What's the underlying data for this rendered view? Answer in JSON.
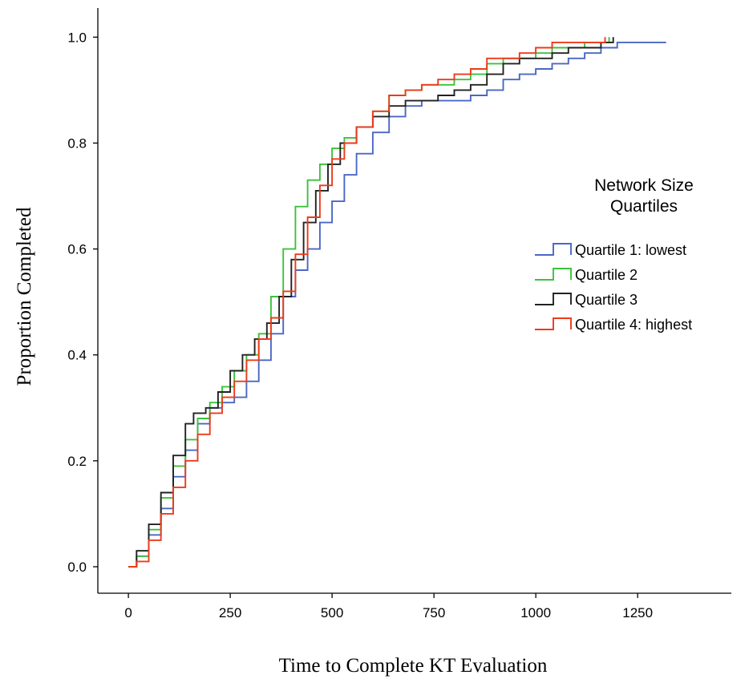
{
  "chart_data": {
    "type": "line",
    "step": true,
    "xlabel": "Time to Complete KT Evaluation",
    "ylabel": "Proportion Completed",
    "xlim": [
      -75,
      1480
    ],
    "ylim": [
      -0.05,
      1.055
    ],
    "xticks": [
      0,
      250,
      500,
      750,
      1000,
      1250
    ],
    "xtick_labels": [
      "0",
      "250",
      "500",
      "750",
      "1000",
      "1250"
    ],
    "yticks": [
      0.0,
      0.2,
      0.4,
      0.6,
      0.8,
      1.0
    ],
    "ytick_labels": [
      "0.0",
      "0.2",
      "0.4",
      "0.6",
      "0.8",
      "1.0"
    ],
    "grid": false,
    "legend": {
      "title": [
        "Network Size",
        "Quartiles"
      ],
      "position": "right"
    },
    "series": [
      {
        "name": "Quartile 1: lowest",
        "color": "#4a67c4",
        "points": [
          [
            0,
            0
          ],
          [
            20,
            0.02
          ],
          [
            50,
            0.06
          ],
          [
            80,
            0.11
          ],
          [
            110,
            0.17
          ],
          [
            140,
            0.22
          ],
          [
            170,
            0.27
          ],
          [
            200,
            0.3
          ],
          [
            230,
            0.31
          ],
          [
            260,
            0.32
          ],
          [
            290,
            0.35
          ],
          [
            320,
            0.39
          ],
          [
            350,
            0.44
          ],
          [
            380,
            0.51
          ],
          [
            410,
            0.56
          ],
          [
            440,
            0.6
          ],
          [
            470,
            0.65
          ],
          [
            500,
            0.69
          ],
          [
            530,
            0.74
          ],
          [
            560,
            0.78
          ],
          [
            600,
            0.82
          ],
          [
            640,
            0.85
          ],
          [
            680,
            0.87
          ],
          [
            720,
            0.88
          ],
          [
            760,
            0.88
          ],
          [
            800,
            0.88
          ],
          [
            840,
            0.89
          ],
          [
            880,
            0.9
          ],
          [
            920,
            0.92
          ],
          [
            960,
            0.93
          ],
          [
            1000,
            0.94
          ],
          [
            1040,
            0.95
          ],
          [
            1080,
            0.96
          ],
          [
            1120,
            0.97
          ],
          [
            1160,
            0.98
          ],
          [
            1200,
            0.99
          ],
          [
            1320,
            0.99
          ]
        ]
      },
      {
        "name": "Quartile 2",
        "color": "#3cc13c",
        "points": [
          [
            0,
            0
          ],
          [
            20,
            0.02
          ],
          [
            50,
            0.07
          ],
          [
            80,
            0.13
          ],
          [
            110,
            0.19
          ],
          [
            140,
            0.24
          ],
          [
            170,
            0.28
          ],
          [
            200,
            0.31
          ],
          [
            230,
            0.34
          ],
          [
            260,
            0.37
          ],
          [
            290,
            0.4
          ],
          [
            320,
            0.44
          ],
          [
            350,
            0.51
          ],
          [
            380,
            0.6
          ],
          [
            410,
            0.68
          ],
          [
            440,
            0.73
          ],
          [
            470,
            0.76
          ],
          [
            500,
            0.79
          ],
          [
            530,
            0.81
          ],
          [
            560,
            0.83
          ],
          [
            600,
            0.86
          ],
          [
            640,
            0.89
          ],
          [
            680,
            0.9
          ],
          [
            720,
            0.91
          ],
          [
            760,
            0.91
          ],
          [
            800,
            0.92
          ],
          [
            840,
            0.93
          ],
          [
            880,
            0.95
          ],
          [
            920,
            0.96
          ],
          [
            960,
            0.96
          ],
          [
            1000,
            0.97
          ],
          [
            1040,
            0.98
          ],
          [
            1080,
            0.98
          ],
          [
            1120,
            0.99
          ],
          [
            1180,
            1.0
          ]
        ]
      },
      {
        "name": "Quartile 3",
        "color": "#222222",
        "points": [
          [
            0,
            0
          ],
          [
            20,
            0.03
          ],
          [
            50,
            0.08
          ],
          [
            80,
            0.14
          ],
          [
            110,
            0.21
          ],
          [
            140,
            0.27
          ],
          [
            160,
            0.29
          ],
          [
            190,
            0.3
          ],
          [
            220,
            0.33
          ],
          [
            250,
            0.37
          ],
          [
            280,
            0.4
          ],
          [
            310,
            0.43
          ],
          [
            340,
            0.46
          ],
          [
            370,
            0.51
          ],
          [
            400,
            0.58
          ],
          [
            430,
            0.65
          ],
          [
            460,
            0.71
          ],
          [
            490,
            0.76
          ],
          [
            520,
            0.8
          ],
          [
            560,
            0.83
          ],
          [
            600,
            0.85
          ],
          [
            640,
            0.87
          ],
          [
            680,
            0.88
          ],
          [
            720,
            0.88
          ],
          [
            760,
            0.89
          ],
          [
            800,
            0.9
          ],
          [
            840,
            0.91
          ],
          [
            880,
            0.93
          ],
          [
            920,
            0.95
          ],
          [
            960,
            0.96
          ],
          [
            1000,
            0.96
          ],
          [
            1040,
            0.97
          ],
          [
            1080,
            0.98
          ],
          [
            1120,
            0.98
          ],
          [
            1160,
            0.99
          ],
          [
            1190,
            1.0
          ]
        ]
      },
      {
        "name": "Quartile 4: highest",
        "color": "#ee3a1a",
        "points": [
          [
            0,
            0
          ],
          [
            20,
            0.01
          ],
          [
            50,
            0.05
          ],
          [
            80,
            0.1
          ],
          [
            110,
            0.15
          ],
          [
            140,
            0.2
          ],
          [
            170,
            0.25
          ],
          [
            200,
            0.29
          ],
          [
            230,
            0.32
          ],
          [
            260,
            0.35
          ],
          [
            290,
            0.39
          ],
          [
            320,
            0.43
          ],
          [
            350,
            0.47
          ],
          [
            380,
            0.52
          ],
          [
            410,
            0.59
          ],
          [
            440,
            0.66
          ],
          [
            470,
            0.72
          ],
          [
            500,
            0.77
          ],
          [
            530,
            0.8
          ],
          [
            560,
            0.83
          ],
          [
            600,
            0.86
          ],
          [
            640,
            0.89
          ],
          [
            680,
            0.9
          ],
          [
            720,
            0.91
          ],
          [
            760,
            0.92
          ],
          [
            800,
            0.93
          ],
          [
            840,
            0.94
          ],
          [
            880,
            0.96
          ],
          [
            920,
            0.96
          ],
          [
            960,
            0.97
          ],
          [
            1000,
            0.98
          ],
          [
            1040,
            0.99
          ],
          [
            1080,
            0.99
          ],
          [
            1120,
            0.99
          ],
          [
            1170,
            1.0
          ]
        ]
      }
    ]
  }
}
